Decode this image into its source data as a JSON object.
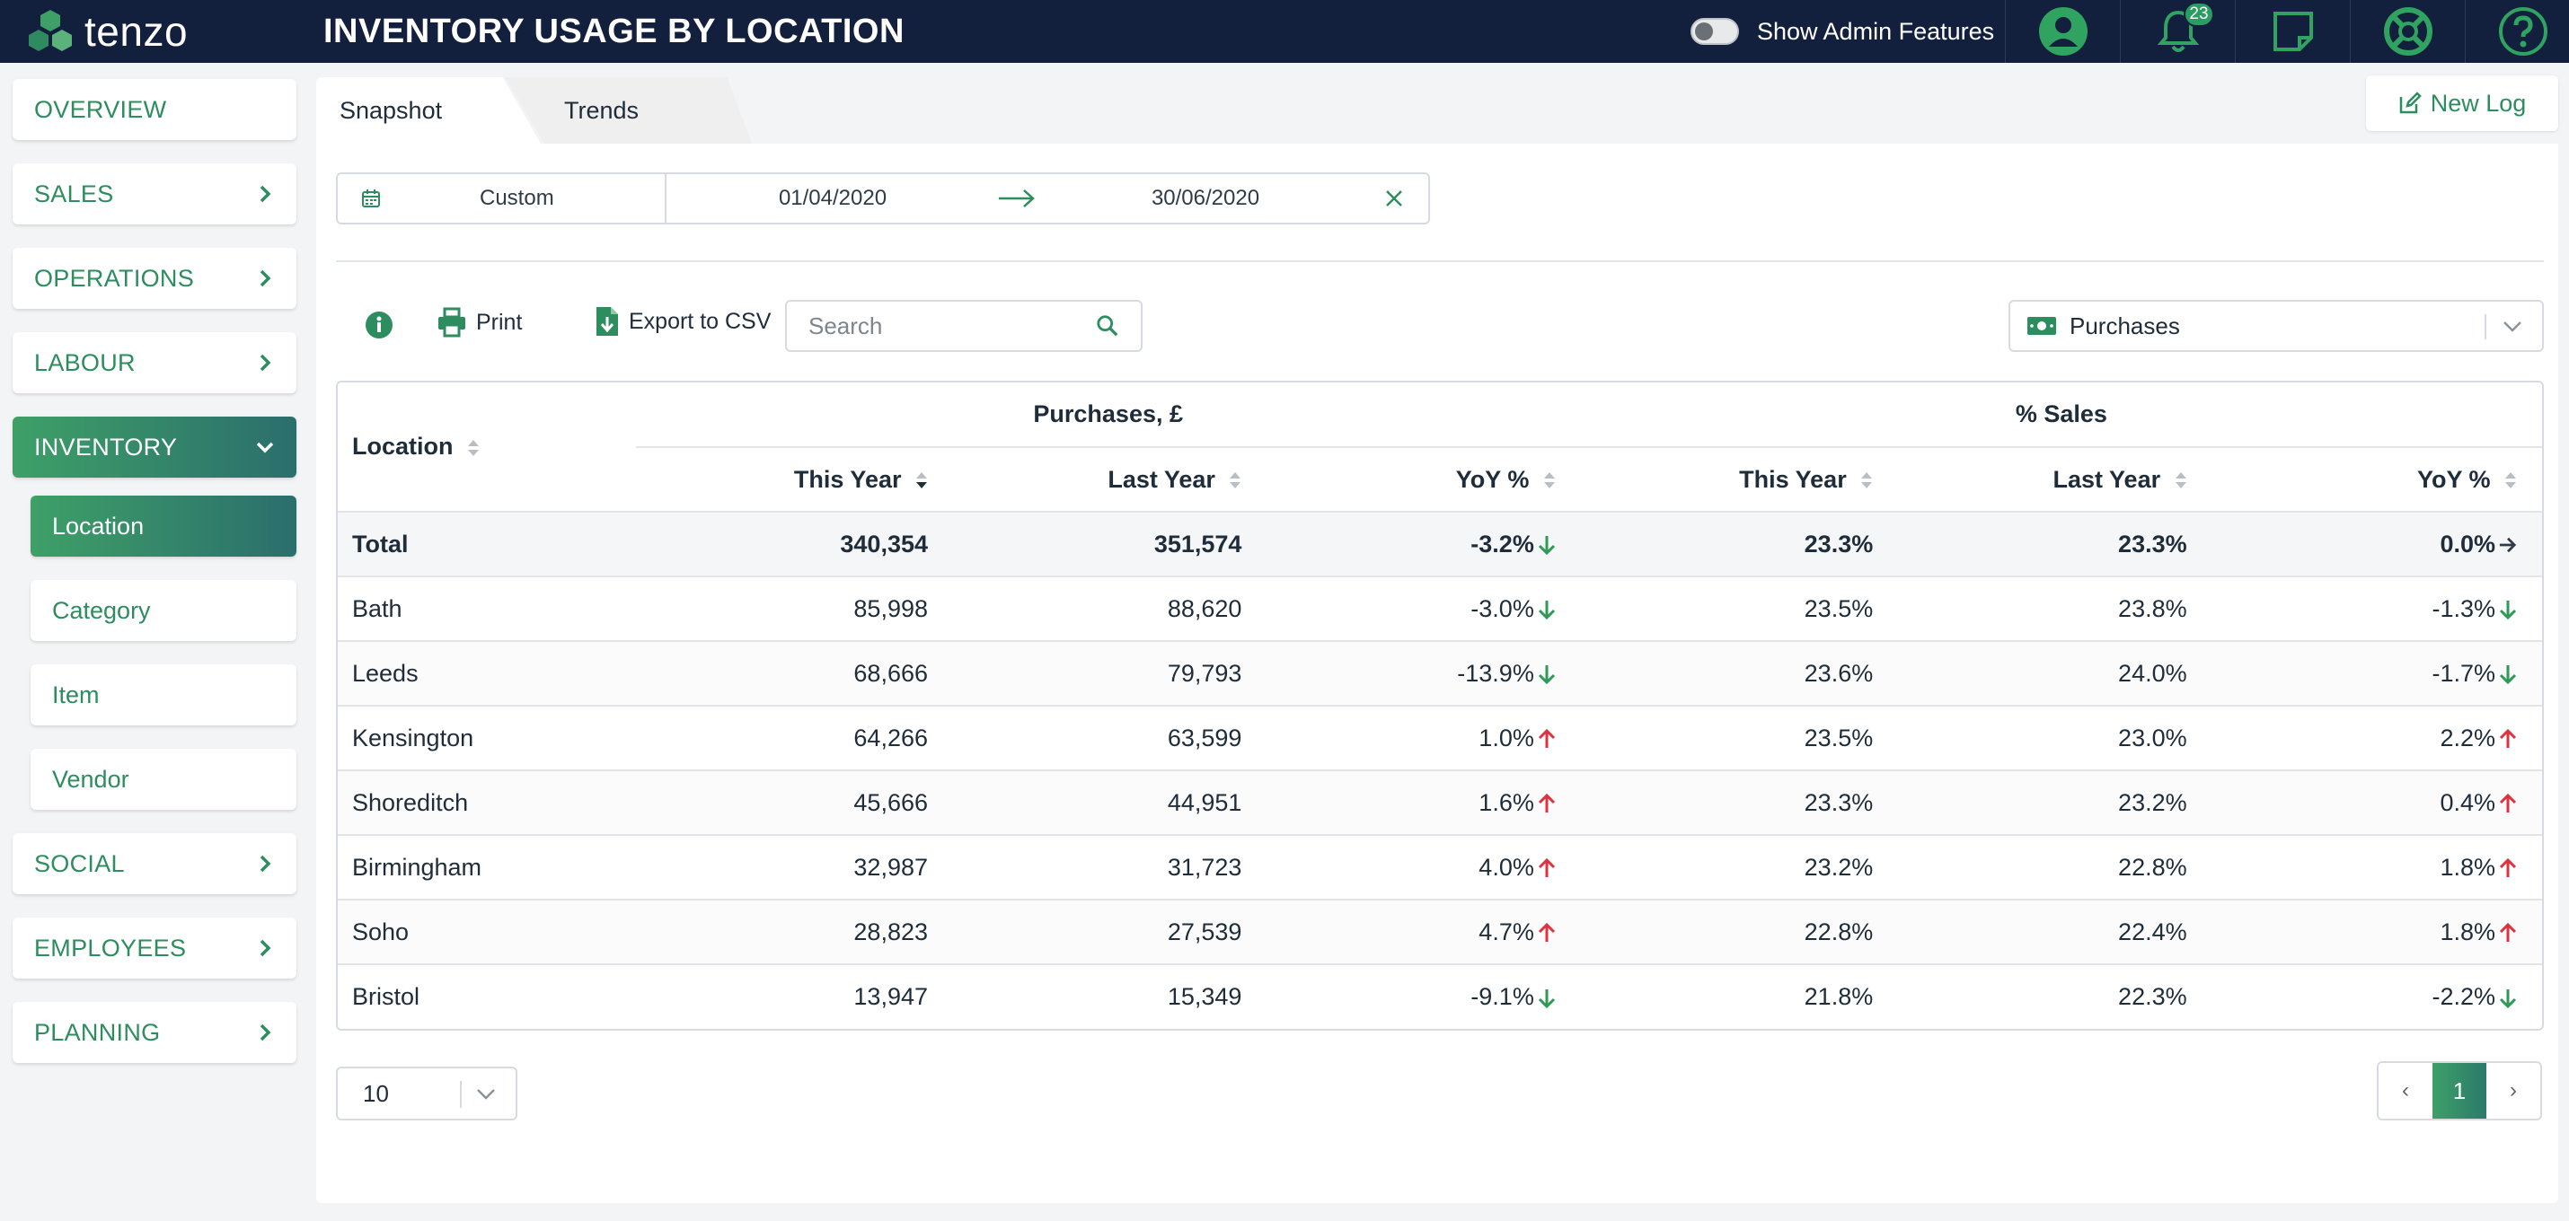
{
  "app": {
    "brand": "tenzo",
    "page_title": "INVENTORY USAGE BY LOCATION",
    "admin_toggle_label": "Show Admin Features",
    "notification_count": "23"
  },
  "colors": {
    "accent": "#2d8d5e",
    "topbar": "#13203d",
    "up": "#d9343f",
    "down": "#2f9a57",
    "flat": "#2f3b46"
  },
  "sidebar": {
    "items": [
      {
        "label": "OVERVIEW"
      },
      {
        "label": "SALES"
      },
      {
        "label": "OPERATIONS"
      },
      {
        "label": "LABOUR"
      },
      {
        "label": "INVENTORY"
      },
      {
        "label": "SOCIAL"
      },
      {
        "label": "EMPLOYEES"
      },
      {
        "label": "PLANNING"
      }
    ],
    "sub_items": [
      {
        "label": "Location"
      },
      {
        "label": "Category"
      },
      {
        "label": "Item"
      },
      {
        "label": "Vendor"
      }
    ]
  },
  "tabs": [
    {
      "label": "Snapshot"
    },
    {
      "label": "Trends"
    }
  ],
  "new_log_label": "New Log",
  "date_range": {
    "preset": "Custom",
    "start": "01/04/2020",
    "end": "30/06/2020"
  },
  "toolbar": {
    "print_label": "Print",
    "export_label": "Export to CSV",
    "search_placeholder": "Search",
    "metric": "Purchases"
  },
  "table": {
    "location_header": "Location",
    "group_headers": [
      "Purchases, £",
      "% Sales"
    ],
    "columns": [
      "This Year",
      "Last Year",
      "YoY %",
      "This Year",
      "Last Year",
      "YoY %"
    ],
    "rows": [
      {
        "location": "Total",
        "p_this": "340,354",
        "p_last": "351,574",
        "p_yoy": "-3.2%",
        "p_dir": "down",
        "s_this": "23.3%",
        "s_last": "23.3%",
        "s_yoy": "0.0%",
        "s_dir": "flat"
      },
      {
        "location": "Bath",
        "p_this": "85,998",
        "p_last": "88,620",
        "p_yoy": "-3.0%",
        "p_dir": "down",
        "s_this": "23.5%",
        "s_last": "23.8%",
        "s_yoy": "-1.3%",
        "s_dir": "down"
      },
      {
        "location": "Leeds",
        "p_this": "68,666",
        "p_last": "79,793",
        "p_yoy": "-13.9%",
        "p_dir": "down",
        "s_this": "23.6%",
        "s_last": "24.0%",
        "s_yoy": "-1.7%",
        "s_dir": "down"
      },
      {
        "location": "Kensington",
        "p_this": "64,266",
        "p_last": "63,599",
        "p_yoy": "1.0%",
        "p_dir": "up",
        "s_this": "23.5%",
        "s_last": "23.0%",
        "s_yoy": "2.2%",
        "s_dir": "up"
      },
      {
        "location": "Shoreditch",
        "p_this": "45,666",
        "p_last": "44,951",
        "p_yoy": "1.6%",
        "p_dir": "up",
        "s_this": "23.3%",
        "s_last": "23.2%",
        "s_yoy": "0.4%",
        "s_dir": "up"
      },
      {
        "location": "Birmingham",
        "p_this": "32,987",
        "p_last": "31,723",
        "p_yoy": "4.0%",
        "p_dir": "up",
        "s_this": "23.2%",
        "s_last": "22.8%",
        "s_yoy": "1.8%",
        "s_dir": "up"
      },
      {
        "location": "Soho",
        "p_this": "28,823",
        "p_last": "27,539",
        "p_yoy": "4.7%",
        "p_dir": "up",
        "s_this": "22.8%",
        "s_last": "22.4%",
        "s_yoy": "1.8%",
        "s_dir": "up"
      },
      {
        "location": "Bristol",
        "p_this": "13,947",
        "p_last": "15,349",
        "p_yoy": "-9.1%",
        "p_dir": "down",
        "s_this": "21.8%",
        "s_last": "22.3%",
        "s_yoy": "-2.2%",
        "s_dir": "down"
      }
    ]
  },
  "pagination": {
    "page_size": "10",
    "prev": "‹",
    "current": "1",
    "next": "›"
  }
}
